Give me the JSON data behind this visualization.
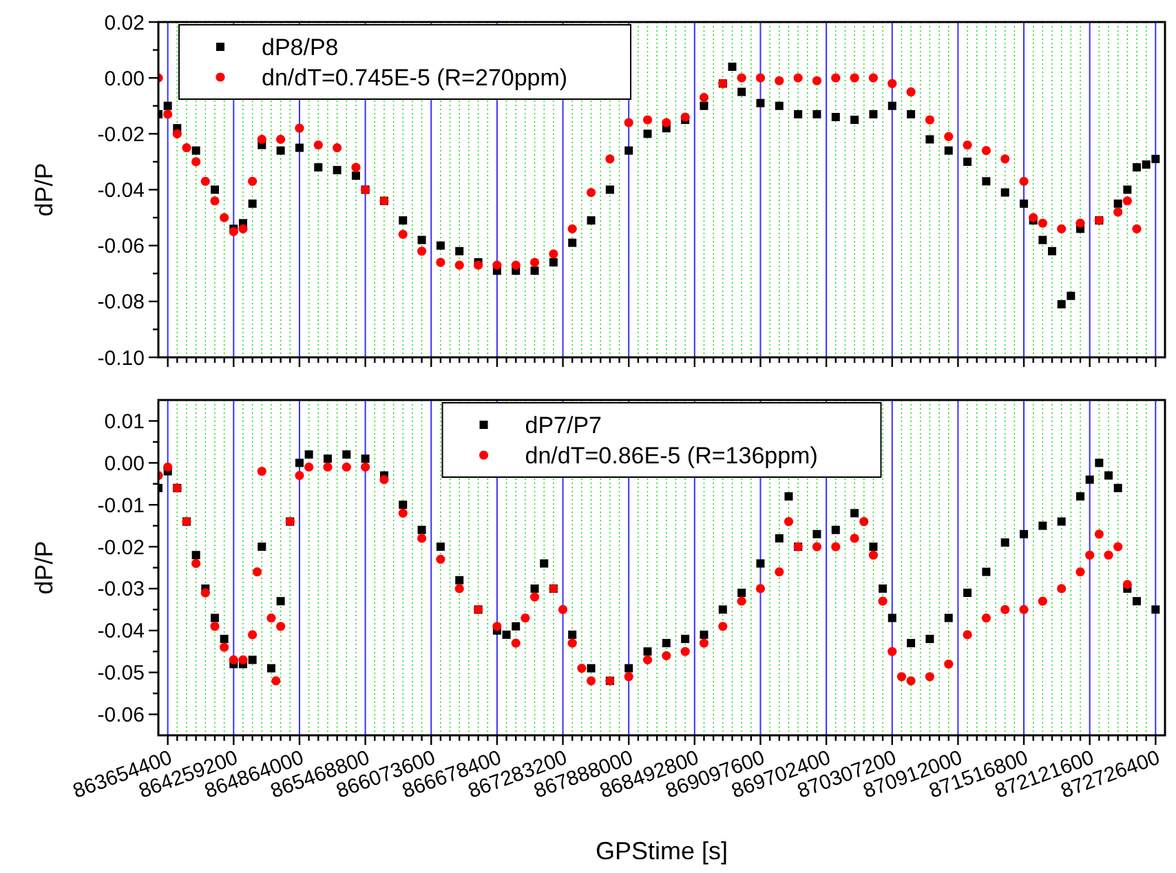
{
  "chart_data": [
    {
      "type": "scatter",
      "ylabel": "dP/P",
      "xlim": [
        863568000,
        872812800
      ],
      "ylim": [
        -0.1,
        0.02
      ],
      "grid": "x",
      "legend": "top left",
      "tick_labels": "y",
      "xticks": [
        863654400,
        {
          "value": 863740800,
          "label": null
        },
        {
          "value": 863827200,
          "label": null
        },
        {
          "value": 863913600,
          "label": null
        },
        {
          "value": 864000000,
          "label": null
        },
        {
          "value": 864086400,
          "label": null
        },
        {
          "value": 864172800,
          "label": null
        },
        864259200,
        {
          "value": 864345600,
          "label": null
        },
        {
          "value": 864432000,
          "label": null
        },
        {
          "value": 864518400,
          "label": null
        },
        {
          "value": 864604800,
          "label": null
        },
        {
          "value": 864691200,
          "label": null
        },
        {
          "value": 864777600,
          "label": null
        },
        864864000,
        {
          "value": 864950400,
          "label": null
        },
        {
          "value": 865036800,
          "label": null
        },
        {
          "value": 865123200,
          "label": null
        },
        {
          "value": 865209600,
          "label": null
        },
        {
          "value": 865296000,
          "label": null
        },
        {
          "value": 865382400,
          "label": null
        },
        865468800,
        {
          "value": 865555200,
          "label": null
        },
        {
          "value": 865641600,
          "label": null
        },
        {
          "value": 865728000,
          "label": null
        },
        {
          "value": 865814400,
          "label": null
        },
        {
          "value": 865900800,
          "label": null
        },
        {
          "value": 865987200,
          "label": null
        },
        866073600,
        {
          "value": 866160000,
          "label": null
        },
        {
          "value": 866246400,
          "label": null
        },
        {
          "value": 866332800,
          "label": null
        },
        {
          "value": 866419200,
          "label": null
        },
        {
          "value": 866505600,
          "label": null
        },
        {
          "value": 866592000,
          "label": null
        },
        866678400,
        {
          "value": 866764800,
          "label": null
        },
        {
          "value": 866851200,
          "label": null
        },
        {
          "value": 866937600,
          "label": null
        },
        {
          "value": 867024000,
          "label": null
        },
        {
          "value": 867110400,
          "label": null
        },
        {
          "value": 867196800,
          "label": null
        },
        867283200,
        {
          "value": 867369600,
          "label": null
        },
        {
          "value": 867456000,
          "label": null
        },
        {
          "value": 867542400,
          "label": null
        },
        {
          "value": 867628800,
          "label": null
        },
        {
          "value": 867715200,
          "label": null
        },
        {
          "value": 867801600,
          "label": null
        },
        867888000,
        {
          "value": 867974400,
          "label": null
        },
        {
          "value": 868060800,
          "label": null
        },
        {
          "value": 868147200,
          "label": null
        },
        {
          "value": 868233600,
          "label": null
        },
        {
          "value": 868320000,
          "label": null
        },
        {
          "value": 868406400,
          "label": null
        },
        868492800,
        {
          "value": 868579200,
          "label": null
        },
        {
          "value": 868665600,
          "label": null
        },
        {
          "value": 868752000,
          "label": null
        },
        {
          "value": 868838400,
          "label": null
        },
        {
          "value": 868924800,
          "label": null
        },
        {
          "value": 869011200,
          "label": null
        },
        869097600,
        {
          "value": 869184000,
          "label": null
        },
        {
          "value": 869270400,
          "label": null
        },
        {
          "value": 869356800,
          "label": null
        },
        {
          "value": 869443200,
          "label": null
        },
        {
          "value": 869529600,
          "label": null
        },
        {
          "value": 869616000,
          "label": null
        },
        869702400,
        {
          "value": 869788800,
          "label": null
        },
        {
          "value": 869875200,
          "label": null
        },
        {
          "value": 869961600,
          "label": null
        },
        {
          "value": 870048000,
          "label": null
        },
        {
          "value": 870134400,
          "label": null
        },
        {
          "value": 870220800,
          "label": null
        },
        870307200,
        {
          "value": 870393600,
          "label": null
        },
        {
          "value": 870480000,
          "label": null
        },
        {
          "value": 870566400,
          "label": null
        },
        {
          "value": 870652800,
          "label": null
        },
        {
          "value": 870739200,
          "label": null
        },
        {
          "value": 870825600,
          "label": null
        },
        870912000,
        {
          "value": 870998400,
          "label": null
        },
        {
          "value": 871084800,
          "label": null
        },
        {
          "value": 871171200,
          "label": null
        },
        {
          "value": 871257600,
          "label": null
        },
        {
          "value": 871344000,
          "label": null
        },
        {
          "value": 871430400,
          "label": null
        },
        871516800,
        {
          "value": 871603200,
          "label": null
        },
        {
          "value": 871689600,
          "label": null
        },
        {
          "value": 871776000,
          "label": null
        },
        {
          "value": 871862400,
          "label": null
        },
        {
          "value": 871948800,
          "label": null
        },
        {
          "value": 872035200,
          "label": null
        },
        872121600,
        {
          "value": 872208000,
          "label": null
        },
        {
          "value": 872294400,
          "label": null
        },
        {
          "value": 872380800,
          "label": null
        },
        {
          "value": 872467200,
          "label": null
        },
        {
          "value": 872553600,
          "label": null
        },
        {
          "value": 872640000,
          "label": null
        },
        872726400
      ],
      "yticks": [
        {
          "value": 0.02,
          "label": "0.02"
        },
        {
          "value": 0.01,
          "label": null
        },
        {
          "value": 0,
          "label": "0.00"
        },
        {
          "value": -0.01,
          "label": null
        },
        {
          "value": -0.02,
          "label": "-0.02"
        },
        {
          "value": -0.03,
          "label": null
        },
        {
          "value": -0.04,
          "label": "-0.04"
        },
        {
          "value": -0.05,
          "label": null
        },
        {
          "value": -0.06,
          "label": "-0.06"
        },
        {
          "value": -0.07,
          "label": null
        },
        {
          "value": -0.08,
          "label": "-0.08"
        },
        {
          "value": -0.09,
          "label": null
        },
        {
          "value": -0.1,
          "label": "-0.10"
        }
      ],
      "series": [
        {
          "name": "dP8/P8",
          "color": "#000000",
          "marker": "square",
          "x": [
            863568000,
            863654400,
            863740800,
            863913600,
            864086400,
            864259200,
            864345600,
            864432000,
            864518400,
            864691200,
            864864000,
            865036800,
            865209600,
            865382400,
            865468800,
            865641600,
            865814400,
            865987200,
            866160000,
            866332800,
            866505600,
            866678400,
            866851200,
            867024000,
            867196800,
            867369600,
            867542400,
            867715200,
            867888000,
            868060800,
            868233600,
            868406400,
            868579200,
            868752000,
            868838400,
            868924800,
            869097600,
            869270400,
            869443200,
            869616000,
            869788800,
            869961600,
            870134400,
            870307200,
            870480000,
            870652800,
            870825600,
            870998400,
            871171200,
            871344000,
            871516800,
            871603200,
            871689600,
            871776000,
            871862400,
            871948800,
            872035200,
            872208000,
            872380800,
            872467200,
            872553600,
            872640000,
            872726400
          ],
          "values": [
            -0.013,
            -0.01,
            -0.018,
            -0.026,
            -0.04,
            -0.054,
            -0.052,
            -0.045,
            -0.024,
            -0.026,
            -0.025,
            -0.032,
            -0.033,
            -0.035,
            -0.04,
            -0.044,
            -0.051,
            -0.058,
            -0.06,
            -0.062,
            -0.066,
            -0.069,
            -0.069,
            -0.069,
            -0.066,
            -0.059,
            -0.051,
            -0.04,
            -0.026,
            -0.02,
            -0.018,
            -0.015,
            -0.01,
            -0.002,
            0.004,
            -0.005,
            -0.009,
            -0.01,
            -0.013,
            -0.013,
            -0.014,
            -0.015,
            -0.013,
            -0.01,
            -0.013,
            -0.022,
            -0.026,
            -0.03,
            -0.037,
            -0.041,
            -0.045,
            -0.051,
            -0.058,
            -0.062,
            -0.081,
            -0.078,
            -0.054,
            -0.051,
            -0.045,
            -0.04,
            -0.032,
            -0.031,
            -0.029
          ]
        },
        {
          "name": "dn/dT=0.745E-5 (R=270ppm)",
          "color": "#ff0000",
          "marker": "circle",
          "x": [
            863568000,
            863654400,
            863740800,
            863827200,
            863913600,
            864000000,
            864086400,
            864172800,
            864259200,
            864345600,
            864432000,
            864518400,
            864691200,
            864864000,
            865036800,
            865209600,
            865382400,
            865468800,
            865641600,
            865814400,
            865987200,
            866160000,
            866332800,
            866505600,
            866678400,
            866851200,
            867024000,
            867196800,
            867369600,
            867542400,
            867715200,
            867888000,
            868060800,
            868233600,
            868406400,
            868579200,
            868752000,
            868924800,
            869097600,
            869270400,
            869443200,
            869616000,
            869788800,
            869961600,
            870134400,
            870307200,
            870480000,
            870652800,
            870825600,
            870998400,
            871171200,
            871344000,
            871516800,
            871603200,
            871689600,
            871862400,
            872035200,
            872208000,
            872380800,
            872467200,
            872553600
          ],
          "values": [
            0.0,
            -0.013,
            -0.02,
            -0.025,
            -0.03,
            -0.037,
            -0.044,
            -0.05,
            -0.055,
            -0.054,
            -0.037,
            -0.022,
            -0.022,
            -0.018,
            -0.024,
            -0.025,
            -0.032,
            -0.04,
            -0.044,
            -0.056,
            -0.062,
            -0.066,
            -0.067,
            -0.067,
            -0.067,
            -0.067,
            -0.066,
            -0.063,
            -0.054,
            -0.041,
            -0.029,
            -0.016,
            -0.015,
            -0.016,
            -0.014,
            -0.007,
            -0.002,
            0.0,
            0.0,
            -0.001,
            0.0,
            -0.001,
            0.0,
            0.0,
            0.0,
            -0.002,
            -0.005,
            -0.015,
            -0.021,
            -0.024,
            -0.026,
            -0.029,
            -0.037,
            -0.05,
            -0.052,
            -0.054,
            -0.052,
            -0.051,
            -0.048,
            -0.044,
            -0.054
          ]
        }
      ]
    },
    {
      "type": "scatter",
      "xlabel": "GPStime [s]",
      "ylabel": "dP/P",
      "xlim": [
        863568000,
        872812800
      ],
      "ylim": [
        -0.065,
        0.015
      ],
      "grid": "x",
      "legend": "top",
      "xticks": [
        863654400,
        {
          "value": 863740800,
          "label": null
        },
        {
          "value": 863827200,
          "label": null
        },
        {
          "value": 863913600,
          "label": null
        },
        {
          "value": 864000000,
          "label": null
        },
        {
          "value": 864086400,
          "label": null
        },
        {
          "value": 864172800,
          "label": null
        },
        864259200,
        {
          "value": 864345600,
          "label": null
        },
        {
          "value": 864432000,
          "label": null
        },
        {
          "value": 864518400,
          "label": null
        },
        {
          "value": 864604800,
          "label": null
        },
        {
          "value": 864691200,
          "label": null
        },
        {
          "value": 864777600,
          "label": null
        },
        864864000,
        {
          "value": 864950400,
          "label": null
        },
        {
          "value": 865036800,
          "label": null
        },
        {
          "value": 865123200,
          "label": null
        },
        {
          "value": 865209600,
          "label": null
        },
        {
          "value": 865296000,
          "label": null
        },
        {
          "value": 865382400,
          "label": null
        },
        865468800,
        {
          "value": 865555200,
          "label": null
        },
        {
          "value": 865641600,
          "label": null
        },
        {
          "value": 865728000,
          "label": null
        },
        {
          "value": 865814400,
          "label": null
        },
        {
          "value": 865900800,
          "label": null
        },
        {
          "value": 865987200,
          "label": null
        },
        866073600,
        {
          "value": 866160000,
          "label": null
        },
        {
          "value": 866246400,
          "label": null
        },
        {
          "value": 866332800,
          "label": null
        },
        {
          "value": 866419200,
          "label": null
        },
        {
          "value": 866505600,
          "label": null
        },
        {
          "value": 866592000,
          "label": null
        },
        866678400,
        {
          "value": 866764800,
          "label": null
        },
        {
          "value": 866851200,
          "label": null
        },
        {
          "value": 866937600,
          "label": null
        },
        {
          "value": 867024000,
          "label": null
        },
        {
          "value": 867110400,
          "label": null
        },
        {
          "value": 867196800,
          "label": null
        },
        867283200,
        {
          "value": 867369600,
          "label": null
        },
        {
          "value": 867456000,
          "label": null
        },
        {
          "value": 867542400,
          "label": null
        },
        {
          "value": 867628800,
          "label": null
        },
        {
          "value": 867715200,
          "label": null
        },
        {
          "value": 867801600,
          "label": null
        },
        867888000,
        {
          "value": 867974400,
          "label": null
        },
        {
          "value": 868060800,
          "label": null
        },
        {
          "value": 868147200,
          "label": null
        },
        {
          "value": 868233600,
          "label": null
        },
        {
          "value": 868320000,
          "label": null
        },
        {
          "value": 868406400,
          "label": null
        },
        868492800,
        {
          "value": 868579200,
          "label": null
        },
        {
          "value": 868665600,
          "label": null
        },
        {
          "value": 868752000,
          "label": null
        },
        {
          "value": 868838400,
          "label": null
        },
        {
          "value": 868924800,
          "label": null
        },
        {
          "value": 869011200,
          "label": null
        },
        869097600,
        {
          "value": 869184000,
          "label": null
        },
        {
          "value": 869270400,
          "label": null
        },
        {
          "value": 869356800,
          "label": null
        },
        {
          "value": 869443200,
          "label": null
        },
        {
          "value": 869529600,
          "label": null
        },
        {
          "value": 869616000,
          "label": null
        },
        869702400,
        {
          "value": 869788800,
          "label": null
        },
        {
          "value": 869875200,
          "label": null
        },
        {
          "value": 869961600,
          "label": null
        },
        {
          "value": 870048000,
          "label": null
        },
        {
          "value": 870134400,
          "label": null
        },
        {
          "value": 870220800,
          "label": null
        },
        870307200,
        {
          "value": 870393600,
          "label": null
        },
        {
          "value": 870480000,
          "label": null
        },
        {
          "value": 870566400,
          "label": null
        },
        {
          "value": 870652800,
          "label": null
        },
        {
          "value": 870739200,
          "label": null
        },
        {
          "value": 870825600,
          "label": null
        },
        870912000,
        {
          "value": 870998400,
          "label": null
        },
        {
          "value": 871084800,
          "label": null
        },
        {
          "value": 871171200,
          "label": null
        },
        {
          "value": 871257600,
          "label": null
        },
        {
          "value": 871344000,
          "label": null
        },
        {
          "value": 871430400,
          "label": null
        },
        871516800,
        {
          "value": 871603200,
          "label": null
        },
        {
          "value": 871689600,
          "label": null
        },
        {
          "value": 871776000,
          "label": null
        },
        {
          "value": 871862400,
          "label": null
        },
        {
          "value": 871948800,
          "label": null
        },
        {
          "value": 872035200,
          "label": null
        },
        872121600,
        {
          "value": 872208000,
          "label": null
        },
        {
          "value": 872294400,
          "label": null
        },
        {
          "value": 872380800,
          "label": null
        },
        {
          "value": 872467200,
          "label": null
        },
        {
          "value": 872553600,
          "label": null
        },
        {
          "value": 872640000,
          "label": null
        },
        872726400
      ],
      "yticks": [
        {
          "value": 0.01,
          "label": "0.01"
        },
        {
          "value": 0.005,
          "label": null
        },
        {
          "value": 0,
          "label": "0.00"
        },
        {
          "value": -0.005,
          "label": null
        },
        {
          "value": -0.01,
          "label": "-0.01"
        },
        {
          "value": -0.015,
          "label": null
        },
        {
          "value": -0.02,
          "label": "-0.02"
        },
        {
          "value": -0.025,
          "label": null
        },
        {
          "value": -0.03,
          "label": "-0.03"
        },
        {
          "value": -0.035,
          "label": null
        },
        {
          "value": -0.04,
          "label": "-0.04"
        },
        {
          "value": -0.045,
          "label": null
        },
        {
          "value": -0.05,
          "label": "-0.05"
        },
        {
          "value": -0.055,
          "label": null
        },
        {
          "value": -0.06,
          "label": "-0.06"
        }
      ],
      "series": [
        {
          "name": "dP7/P7",
          "color": "#000000",
          "marker": "square",
          "x": [
            863568000,
            863654400,
            863740800,
            863827200,
            863913600,
            864000000,
            864086400,
            864172800,
            864259200,
            864345600,
            864432000,
            864518400,
            864604800,
            864691200,
            864777600,
            864864000,
            864950400,
            865123200,
            865296000,
            865468800,
            865641600,
            865814400,
            865987200,
            866160000,
            866332800,
            866505600,
            866678400,
            866764800,
            866851200,
            867024000,
            867110400,
            867196800,
            867369600,
            867542400,
            867715200,
            867888000,
            868060800,
            868233600,
            868406400,
            868579200,
            868752000,
            868924800,
            869097600,
            869270400,
            869356800,
            869443200,
            869616000,
            869788800,
            869961600,
            870134400,
            870220800,
            870307200,
            870480000,
            870652800,
            870825600,
            870998400,
            871171200,
            871344000,
            871516800,
            871689600,
            871862400,
            872035200,
            872121600,
            872208000,
            872294400,
            872380800,
            872467200,
            872553600,
            872726400
          ],
          "values": [
            -0.006,
            -0.002,
            -0.006,
            -0.014,
            -0.022,
            -0.03,
            -0.037,
            -0.042,
            -0.048,
            -0.048,
            -0.047,
            -0.02,
            -0.049,
            -0.033,
            -0.014,
            0.0,
            0.002,
            0.001,
            0.002,
            0.001,
            -0.003,
            -0.01,
            -0.016,
            -0.02,
            -0.028,
            -0.035,
            -0.04,
            -0.041,
            -0.039,
            -0.03,
            -0.024,
            -0.03,
            -0.041,
            -0.049,
            -0.052,
            -0.049,
            -0.045,
            -0.043,
            -0.042,
            -0.041,
            -0.035,
            -0.031,
            -0.024,
            -0.018,
            -0.008,
            -0.02,
            -0.017,
            -0.016,
            -0.012,
            -0.02,
            -0.03,
            -0.037,
            -0.043,
            -0.042,
            -0.037,
            -0.031,
            -0.026,
            -0.019,
            -0.017,
            -0.015,
            -0.014,
            -0.008,
            -0.004,
            0.0,
            -0.003,
            -0.006,
            -0.03,
            -0.033,
            -0.035
          ]
        },
        {
          "name": "dn/dT=0.86E-5 (R=136ppm)",
          "color": "#ff0000",
          "marker": "circle",
          "x": [
            863568000,
            863654400,
            863740800,
            863827200,
            863913600,
            864000000,
            864086400,
            864172800,
            864259200,
            864345600,
            864432000,
            864475200,
            864518400,
            864604800,
            864648000,
            864691200,
            864777600,
            864864000,
            864950400,
            865123200,
            865296000,
            865468800,
            865641600,
            865814400,
            865987200,
            866160000,
            866332800,
            866505600,
            866678400,
            866851200,
            866937600,
            867024000,
            867196800,
            867283200,
            867369600,
            867456000,
            867542400,
            867715200,
            867888000,
            868060800,
            868233600,
            868406400,
            868579200,
            868752000,
            868924800,
            869097600,
            869270400,
            869356800,
            869443200,
            869616000,
            869788800,
            869961600,
            870048000,
            870134400,
            870220800,
            870307200,
            870393600,
            870480000,
            870652800,
            870825600,
            870998400,
            871171200,
            871344000,
            871516800,
            871689600,
            871862400,
            872035200,
            872121600,
            872208000,
            872294400,
            872380800,
            872467200
          ],
          "values": [
            -0.003,
            -0.001,
            -0.006,
            -0.014,
            -0.024,
            -0.031,
            -0.039,
            -0.044,
            -0.047,
            -0.047,
            -0.041,
            -0.026,
            -0.002,
            -0.037,
            -0.052,
            -0.039,
            -0.014,
            -0.003,
            -0.001,
            -0.001,
            -0.001,
            -0.001,
            -0.004,
            -0.012,
            -0.018,
            -0.023,
            -0.03,
            -0.035,
            -0.039,
            -0.043,
            -0.037,
            -0.032,
            -0.03,
            -0.035,
            -0.043,
            -0.049,
            -0.052,
            -0.052,
            -0.051,
            -0.047,
            -0.046,
            -0.045,
            -0.043,
            -0.039,
            -0.033,
            -0.03,
            -0.026,
            -0.014,
            -0.02,
            -0.02,
            -0.02,
            -0.018,
            -0.014,
            -0.022,
            -0.033,
            -0.045,
            -0.051,
            -0.052,
            -0.051,
            -0.048,
            -0.041,
            -0.037,
            -0.035,
            -0.035,
            -0.033,
            -0.03,
            -0.026,
            -0.022,
            -0.017,
            -0.022,
            -0.02,
            -0.029
          ]
        }
      ]
    }
  ]
}
